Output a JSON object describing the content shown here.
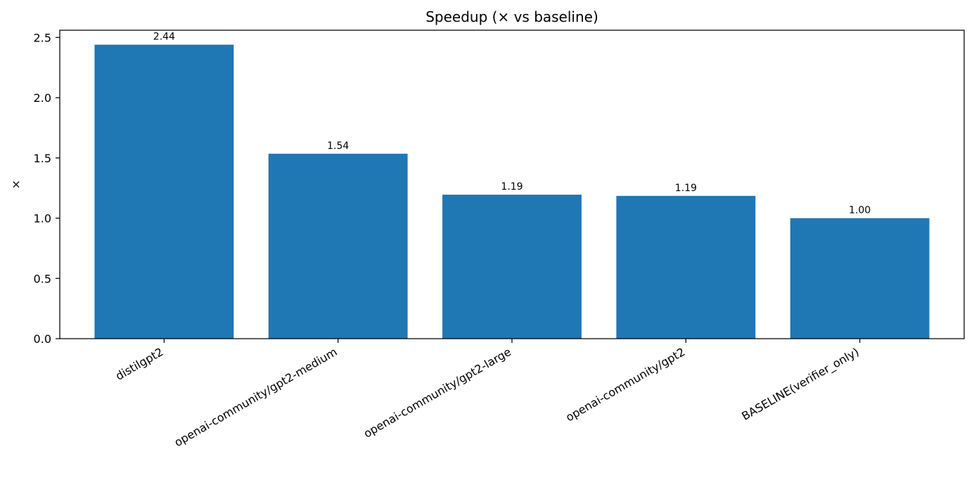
{
  "chart_data": {
    "type": "bar",
    "title": "Speedup (× vs baseline)",
    "xlabel": "",
    "ylabel": "×",
    "categories": [
      "distilgpt2",
      "openai-community/gpt2-medium",
      "openai-community/gpt2-large",
      "openai-community/gpt2",
      "BASELINE(verifier_only)"
    ],
    "values": [
      2.44,
      1.535,
      1.195,
      1.185,
      1.0
    ],
    "value_labels": [
      "2.44",
      "1.54",
      "1.19",
      "1.19",
      "1.00"
    ],
    "ylim": [
      0,
      2.56
    ],
    "yticks": [
      "0.0",
      "0.5",
      "1.0",
      "1.5",
      "2.0",
      "2.5"
    ],
    "bar_color": "#1f77b4",
    "grid": false,
    "legend": "none"
  }
}
